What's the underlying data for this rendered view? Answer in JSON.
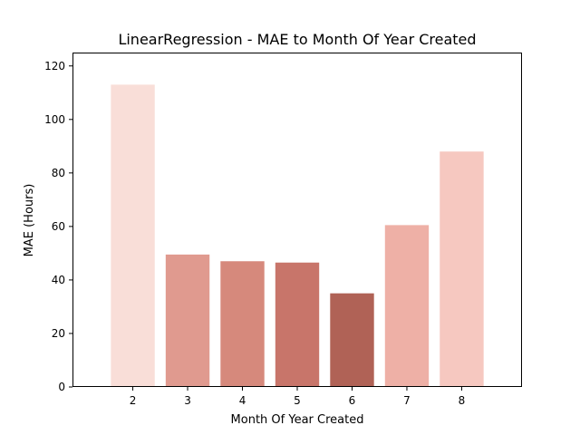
{
  "chart_data": {
    "type": "bar",
    "title": "LinearRegression - MAE to Month Of Year Created",
    "xlabel": "Month Of Year Created",
    "ylabel": "MAE (Hours)",
    "categories": [
      "2",
      "3",
      "4",
      "5",
      "6",
      "7",
      "8"
    ],
    "values": [
      113.0,
      49.5,
      47.0,
      46.5,
      35.0,
      60.5,
      88.0
    ],
    "bar_colors": [
      "#f9ded8",
      "#e09a8f",
      "#d6897c",
      "#c8756a",
      "#b06256",
      "#eeb0a6",
      "#f6c8c0"
    ],
    "ylim": [
      0,
      125
    ],
    "yticks": [
      0,
      20,
      40,
      60,
      80,
      100,
      120
    ],
    "grid": false,
    "legend": "none"
  }
}
